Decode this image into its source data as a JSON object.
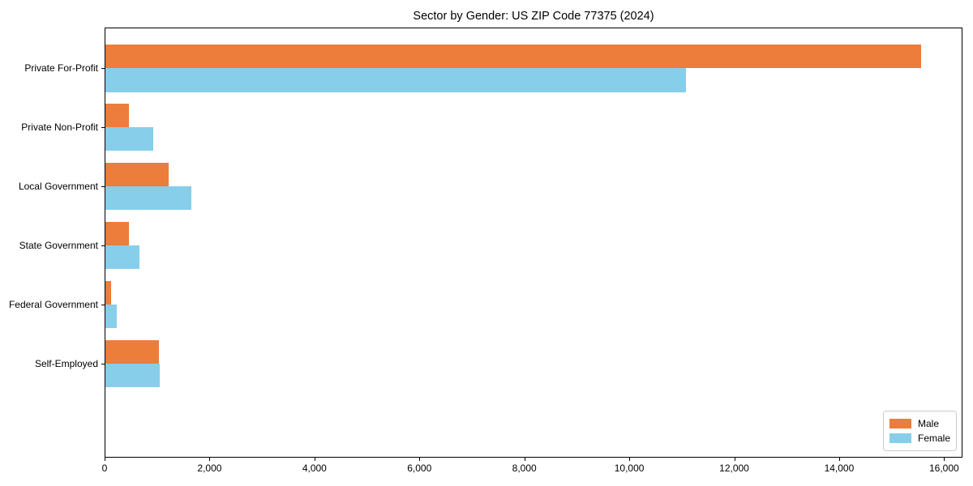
{
  "chart_data": {
    "type": "bar",
    "orientation": "horizontal",
    "title": "Sector by Gender: US ZIP Code 77375 (2024)",
    "categories": [
      "Private For-Profit",
      "Private Non-Profit",
      "Local Government",
      "State Government",
      "Federal Government",
      "Self-Employed"
    ],
    "series": [
      {
        "name": "Male",
        "color": "#ec7d3b",
        "values": [
          15560,
          460,
          1220,
          470,
          130,
          1030
        ]
      },
      {
        "name": "Female",
        "color": "#87ceeb",
        "values": [
          11080,
          930,
          1660,
          660,
          225,
          1050
        ]
      }
    ],
    "xlabel": "",
    "ylabel": "",
    "xlim": [
      0,
      16350
    ],
    "xticks": [
      {
        "value": 0,
        "label": "0"
      },
      {
        "value": 2000,
        "label": "2,000"
      },
      {
        "value": 4000,
        "label": "4,000"
      },
      {
        "value": 6000,
        "label": "6,000"
      },
      {
        "value": 8000,
        "label": "8,000"
      },
      {
        "value": 10000,
        "label": "10,000"
      },
      {
        "value": 12000,
        "label": "12,000"
      },
      {
        "value": 14000,
        "label": "14,000"
      },
      {
        "value": 16000,
        "label": "16,000"
      }
    ],
    "grid": false,
    "legend_position": "lower right"
  }
}
